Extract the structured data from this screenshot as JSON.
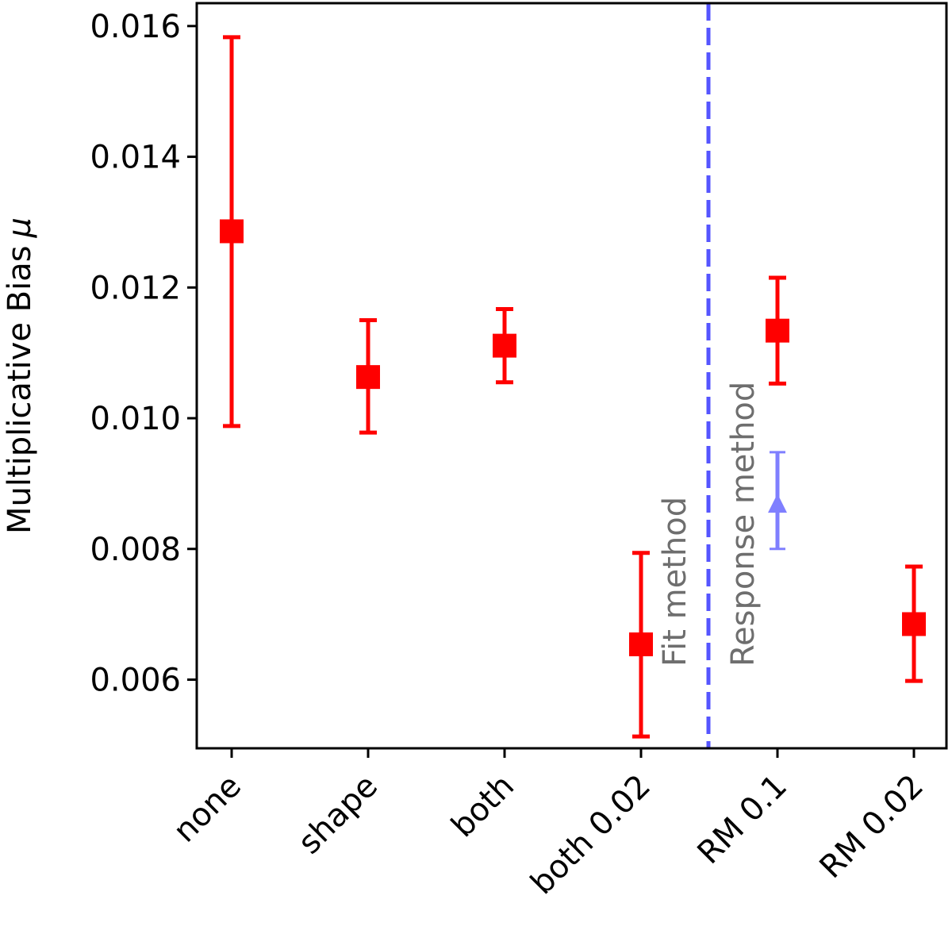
{
  "chart_data": {
    "type": "scatter",
    "ylabel": "Multiplicative Bias",
    "ylabel_symbol": "μ",
    "categories": [
      "none",
      "shape",
      "both",
      "both 0.02",
      "RM 0.1",
      "RM 0.02"
    ],
    "ylim": [
      0.00495,
      0.01635
    ],
    "yticks": [
      0.006,
      0.008,
      0.01,
      0.012,
      0.014,
      0.016
    ],
    "ytick_labels": [
      "0.006",
      "0.008",
      "0.010",
      "0.012",
      "0.014",
      "0.016"
    ],
    "grid": false,
    "series": [
      {
        "color": "#ff0000",
        "marker": "square",
        "points": [
          {
            "x": "none",
            "y": 0.01286,
            "low": 0.00988,
            "high": 0.01583
          },
          {
            "x": "shape",
            "y": 0.01063,
            "low": 0.00978,
            "high": 0.0115
          },
          {
            "x": "both",
            "y": 0.01111,
            "low": 0.01055,
            "high": 0.01167
          },
          {
            "x": "both 0.02",
            "y": 0.00654,
            "low": 0.00513,
            "high": 0.00794
          },
          {
            "x": "RM 0.1",
            "y": 0.01134,
            "low": 0.01053,
            "high": 0.01215
          },
          {
            "x": "RM 0.02",
            "y": 0.00685,
            "low": 0.00598,
            "high": 0.00773
          }
        ]
      },
      {
        "color": "#5555ff",
        "marker": "triangle-up",
        "points": [
          {
            "x": "RM 0.1",
            "y": 0.0087,
            "low": 0.008,
            "high": 0.00948
          }
        ]
      }
    ],
    "divider": {
      "between": [
        "both 0.02",
        "RM 0.1"
      ],
      "color": "#5555ff",
      "style": "dashed"
    },
    "annotations": {
      "left": "Fit method",
      "right": "Response method"
    }
  }
}
